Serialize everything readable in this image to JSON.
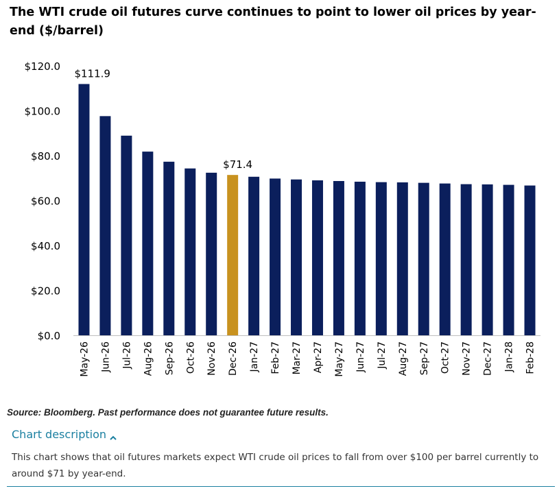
{
  "header": {
    "title": "The WTI crude oil futures curve continues to point to lower oil prices by year-end ($/barrel)"
  },
  "chart_data": {
    "type": "bar",
    "title": "The WTI crude oil futures curve continues to point to lower oil prices by year-end ($/barrel)",
    "xlabel": "",
    "ylabel": "",
    "ylim": [
      0,
      120
    ],
    "yticks": [
      0,
      20,
      40,
      60,
      80,
      100,
      120
    ],
    "ytick_labels": [
      "$0.0",
      "$20.0",
      "$40.0",
      "$60.0",
      "$80.0",
      "$100.0",
      "$120.0"
    ],
    "categories": [
      "May-26",
      "Jun-26",
      "Jul-26",
      "Aug-26",
      "Sep-26",
      "Oct-26",
      "Nov-26",
      "Dec-26",
      "Jan-27",
      "Feb-27",
      "Mar-27",
      "Apr-27",
      "May-27",
      "Jun-27",
      "Jul-27",
      "Aug-27",
      "Sep-27",
      "Oct-27",
      "Nov-27",
      "Dec-27",
      "Jan-28",
      "Feb-28"
    ],
    "values": [
      111.9,
      97.6,
      88.9,
      81.8,
      77.3,
      74.3,
      72.4,
      71.4,
      70.6,
      69.8,
      69.4,
      69.0,
      68.7,
      68.4,
      68.2,
      68.1,
      67.9,
      67.6,
      67.3,
      67.2,
      67.0,
      66.7
    ],
    "highlight_index": 7,
    "grid": false,
    "colors": {
      "bar": "#0b1f5c",
      "highlight": "#c8921f",
      "axis": "#bfbfbf"
    },
    "annotations": [
      {
        "index": 0,
        "text": "$111.9"
      },
      {
        "index": 7,
        "text": "$71.4"
      }
    ]
  },
  "footer": {
    "source": "Source: Bloomberg. Past performance does not guarantee future results.",
    "description_toggle": "Chart description",
    "description_icon": "chevron-up-icon",
    "description_text": "This chart shows that oil futures markets expect WTI crude oil prices to fall from over $100 per barrel currently to around $71 by year-end.",
    "accent_color": "#1a7fa0"
  }
}
